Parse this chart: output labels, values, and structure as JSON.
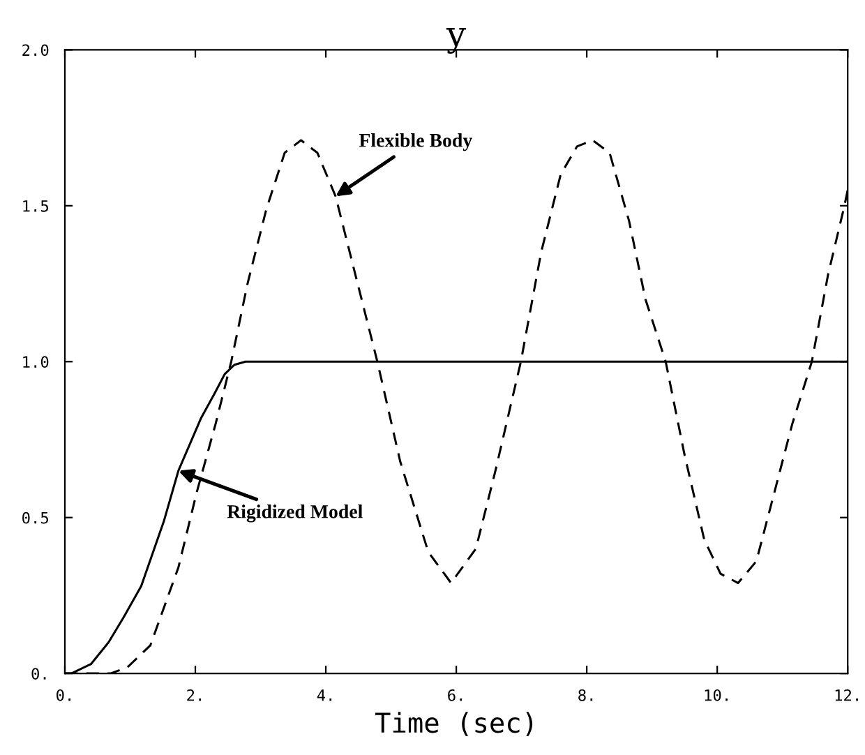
{
  "chart_data": {
    "type": "line",
    "title": "y",
    "xlabel": "Time (sec)",
    "xlim": [
      0,
      12
    ],
    "xticks": [
      {
        "value": 0,
        "label": "0."
      },
      {
        "value": 2,
        "label": "2."
      },
      {
        "value": 4,
        "label": "4."
      },
      {
        "value": 6,
        "label": "6."
      },
      {
        "value": 8,
        "label": "8."
      },
      {
        "value": 10,
        "label": "10."
      },
      {
        "value": 12,
        "label": "12."
      }
    ],
    "ylim": [
      0,
      2
    ],
    "yticks": [
      {
        "value": 0,
        "label": "0."
      },
      {
        "value": 0.5,
        "label": "0.5"
      },
      {
        "value": 1.0,
        "label": "1.0"
      },
      {
        "value": 1.5,
        "label": "1.5"
      },
      {
        "value": 2.0,
        "label": "2.0"
      }
    ],
    "grid": false,
    "legend": false,
    "marker": "none",
    "series": [
      {
        "color": "#000000",
        "line_style": "solid",
        "x": [
          0,
          0.1,
          0.4,
          0.67,
          0.9,
          1.17,
          1.52,
          1.74,
          2.09,
          2.3,
          2.45,
          2.6,
          2.77,
          12
        ],
        "values": [
          0,
          0,
          0.03,
          0.1,
          0.18,
          0.28,
          0.49,
          0.65,
          0.82,
          0.9,
          0.96,
          0.99,
          1.0,
          1.0
        ]
      },
      {
        "color": "#000000",
        "line_style": "dashed",
        "x": [
          0,
          0.7,
          0.96,
          1.31,
          1.74,
          2.02,
          2.31,
          2.55,
          2.8,
          3.09,
          3.37,
          3.62,
          3.87,
          4.15,
          4.5,
          4.79,
          5.14,
          5.57,
          5.92,
          6.3,
          6.6,
          6.99,
          7.3,
          7.6,
          7.85,
          8.09,
          8.35,
          8.65,
          8.9,
          9.21,
          9.5,
          9.8,
          10.05,
          10.32,
          10.6,
          10.9,
          11.15,
          11.45,
          11.7,
          11.95,
          12
        ],
        "values": [
          0,
          0,
          0.02,
          0.09,
          0.34,
          0.58,
          0.8,
          1.0,
          1.25,
          1.49,
          1.67,
          1.71,
          1.67,
          1.53,
          1.24,
          1.0,
          0.68,
          0.39,
          0.29,
          0.4,
          0.65,
          1.0,
          1.35,
          1.6,
          1.69,
          1.71,
          1.67,
          1.45,
          1.2,
          1.0,
          0.7,
          0.43,
          0.32,
          0.29,
          0.36,
          0.6,
          0.8,
          1.0,
          1.28,
          1.5,
          1.55
        ]
      }
    ],
    "annotations": [
      {
        "text": "Flexible Body",
        "x": 4.15,
        "y": 1.53
      },
      {
        "text": "Rigidized Model",
        "x": 1.74,
        "y": 0.65
      }
    ]
  }
}
